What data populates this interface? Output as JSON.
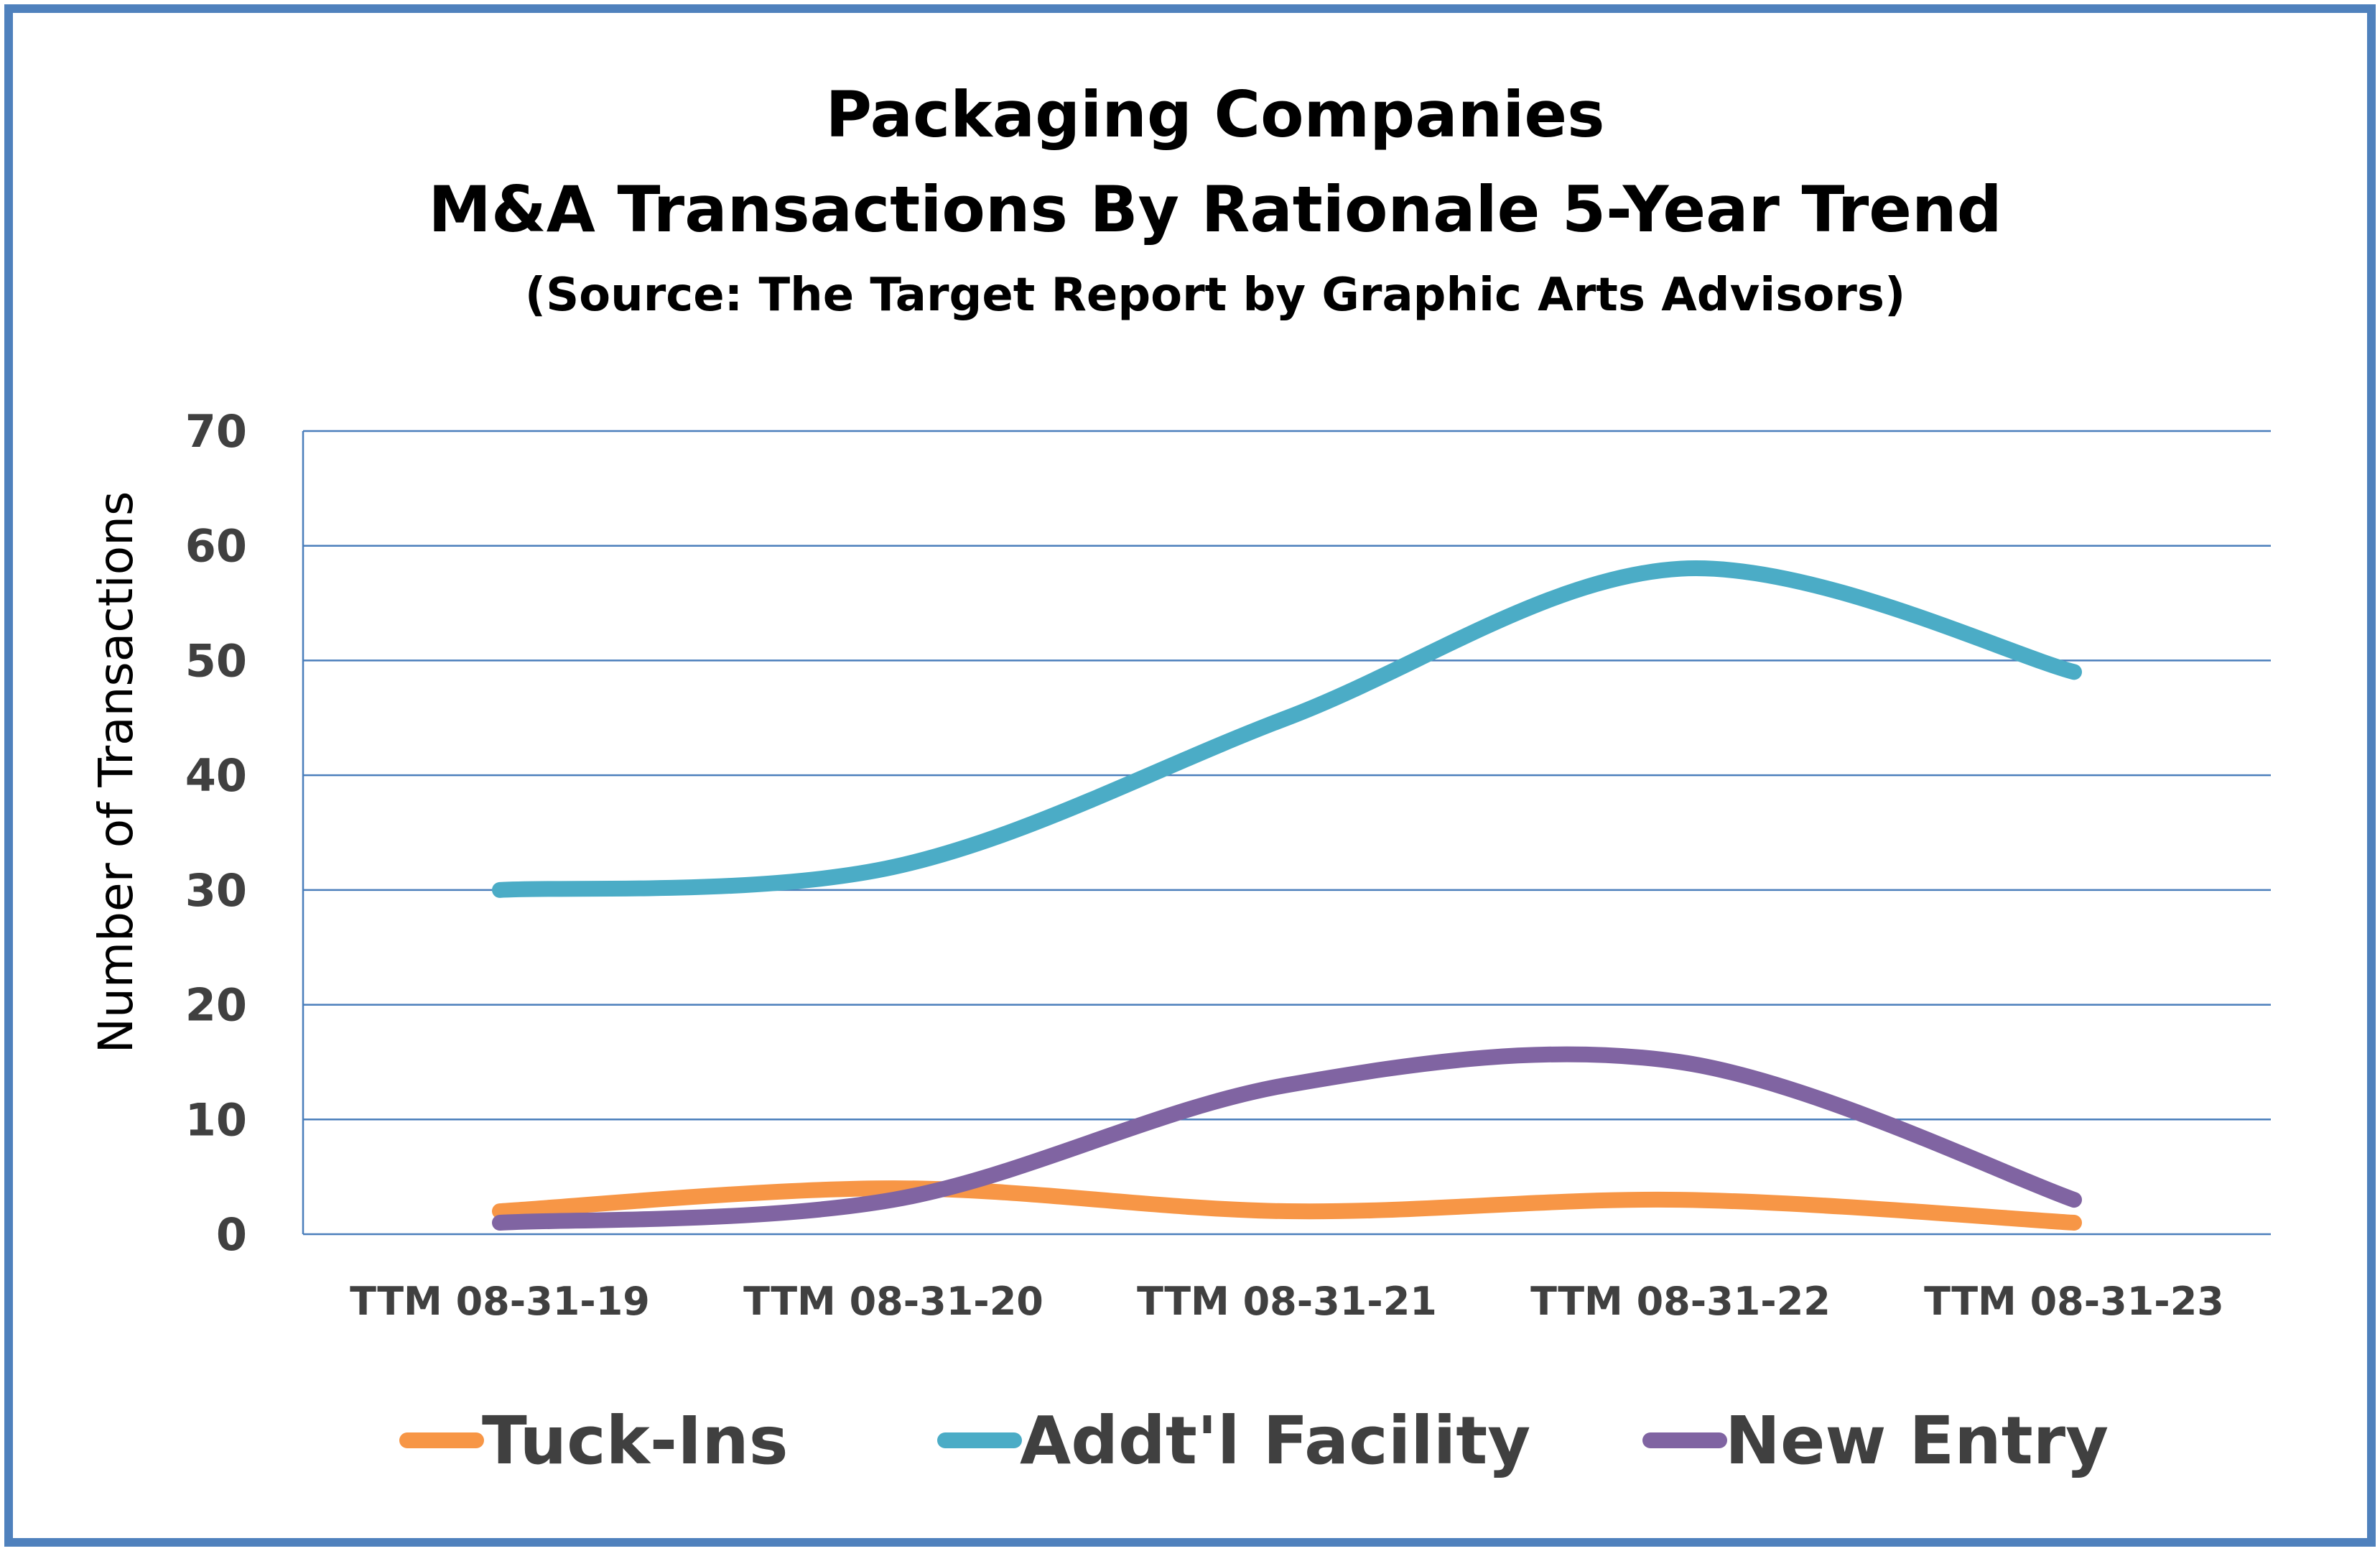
{
  "colors": {
    "frame": "#4f81bd",
    "grid": "#4a7ebb",
    "tuck_ins": "#f79646",
    "addtl_facility": "#4bacc6",
    "new_entry": "#8064a2"
  },
  "chart_data": {
    "type": "line",
    "title": "Packaging Companies",
    "title_line2": "M&A Transactions By Rationale 5-Year Trend",
    "subtitle": "(Source: The Target Report by Graphic Arts Advisors)",
    "xlabel": "",
    "ylabel": "Number of Transactions",
    "ylim": [
      0,
      70
    ],
    "yticks": [
      0,
      10,
      20,
      30,
      40,
      50,
      60,
      70
    ],
    "categories": [
      "TTM 08-31-19",
      "TTM 08-31-20",
      "TTM 08-31-21",
      "TTM 08-31-22",
      "TTM 08-31-23"
    ],
    "smooth": true,
    "grid": true,
    "legend_position": "bottom",
    "series": [
      {
        "name": "Tuck-Ins",
        "color_key": "tuck_ins",
        "values": [
          2,
          4,
          2,
          3,
          1
        ]
      },
      {
        "name": "Addt'l Facility",
        "color_key": "addtl_facility",
        "values": [
          30,
          32,
          45,
          58,
          49
        ]
      },
      {
        "name": "New Entry",
        "color_key": "new_entry",
        "values": [
          1,
          3,
          13,
          15,
          3
        ]
      }
    ]
  }
}
